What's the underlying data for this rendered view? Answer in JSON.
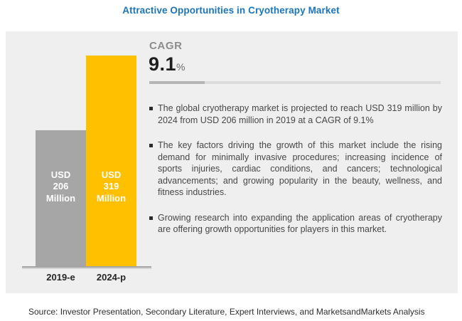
{
  "title": "Attractive Opportunities in Cryotherapy Market",
  "colors": {
    "title_blue": "#1B75BC",
    "panel_bg": "#F0EFEF",
    "bar_gray": "#A6A6A6",
    "bar_yellow": "#FFC000",
    "axis_line_gray": "#A5A5A5",
    "cagr_label_gray": "#8D8D8D",
    "cagr_number_dark": "#1E1E1E",
    "divider_dark": "#B5B5B5",
    "divider_light": "#DCDCDC",
    "text_dark": "#474747"
  },
  "chart_data": {
    "type": "bar",
    "title": "Attractive Opportunities in Cryotherapy Market",
    "categories": [
      "2019-e",
      "2024-p"
    ],
    "values": [
      206,
      319
    ],
    "unit": "USD Million",
    "bar_value_labels": [
      "USD 206 Million",
      "USD 319 Million"
    ],
    "bar_color_keys": [
      "bar_gray",
      "bar_yellow"
    ],
    "xlabel": "",
    "ylabel": "",
    "ylim": [
      0,
      319
    ],
    "grid": false,
    "legend": false
  },
  "cagr": {
    "label": "CAGR",
    "value": "9.1",
    "suffix": "%"
  },
  "bullets": [
    "The global cryotherapy market is projected to reach USD 319 million by 2024 from USD 206 million in 2019 at a CAGR of 9.1%",
    "The key factors driving the growth of this market include the rising demand for minimally invasive procedures; increasing incidence of sports injuries, cardiac conditions, and cancers; technological advancements; and growing popularity in the beauty, wellness, and fitness industries.",
    "Growing research into expanding the application areas of cryotherapy are offering growth opportunities for players in this market."
  ],
  "source": "Source: Investor Presentation, Secondary Literature, Expert Interviews, and MarketsandMarkets Analysis"
}
